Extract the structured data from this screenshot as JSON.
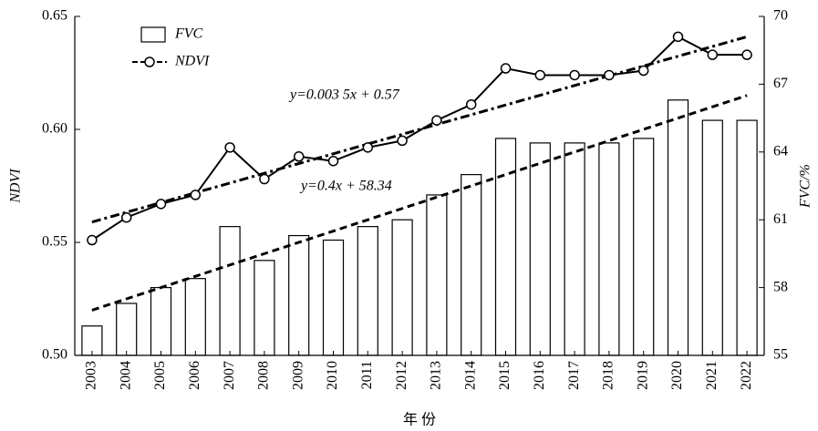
{
  "chart_data": {
    "type": "bar_line",
    "categories": [
      "2003",
      "2004",
      "2005",
      "2006",
      "2007",
      "2008",
      "2009",
      "2010",
      "2011",
      "2012",
      "2013",
      "2014",
      "2015",
      "2016",
      "2017",
      "2018",
      "2019",
      "2020",
      "2021",
      "2022"
    ],
    "series": [
      {
        "name": "FVC",
        "type": "bar",
        "axis": "y2",
        "color": "#ffffff",
        "values": [
          56.3,
          57.3,
          58.0,
          58.4,
          60.7,
          59.2,
          60.3,
          60.1,
          60.7,
          61.0,
          62.1,
          63.0,
          64.6,
          64.4,
          64.4,
          64.4,
          64.6,
          66.3,
          65.4,
          65.4
        ]
      },
      {
        "name": "NDVI",
        "type": "line",
        "axis": "y",
        "color": "#000000",
        "values": [
          0.551,
          0.561,
          0.567,
          0.571,
          0.592,
          0.578,
          0.588,
          0.586,
          0.592,
          0.595,
          0.604,
          0.611,
          0.627,
          0.624,
          0.624,
          0.624,
          0.626,
          0.641,
          0.633,
          0.633
        ]
      }
    ],
    "trendlines": [
      {
        "label": "y=0.003 5x + 0.57",
        "axis": "y",
        "values": [
          0.559,
          0.641
        ]
      },
      {
        "label": "y=0.4x + 58.34",
        "axis": "y2",
        "values": [
          57.0,
          66.5
        ]
      }
    ],
    "xlabel": "年 份",
    "ylabel": "NDVI",
    "y2label": "FVC/%",
    "ylim": [
      0.5,
      0.65
    ],
    "yticks": [
      {
        "value": 0.5,
        "label": "0.50"
      },
      0.55,
      {
        "value": 0.6,
        "label": "0.60"
      },
      0.65
    ],
    "y2lim": [
      55,
      70
    ],
    "y2ticks": [
      55,
      58,
      61,
      64,
      67,
      70
    ]
  }
}
